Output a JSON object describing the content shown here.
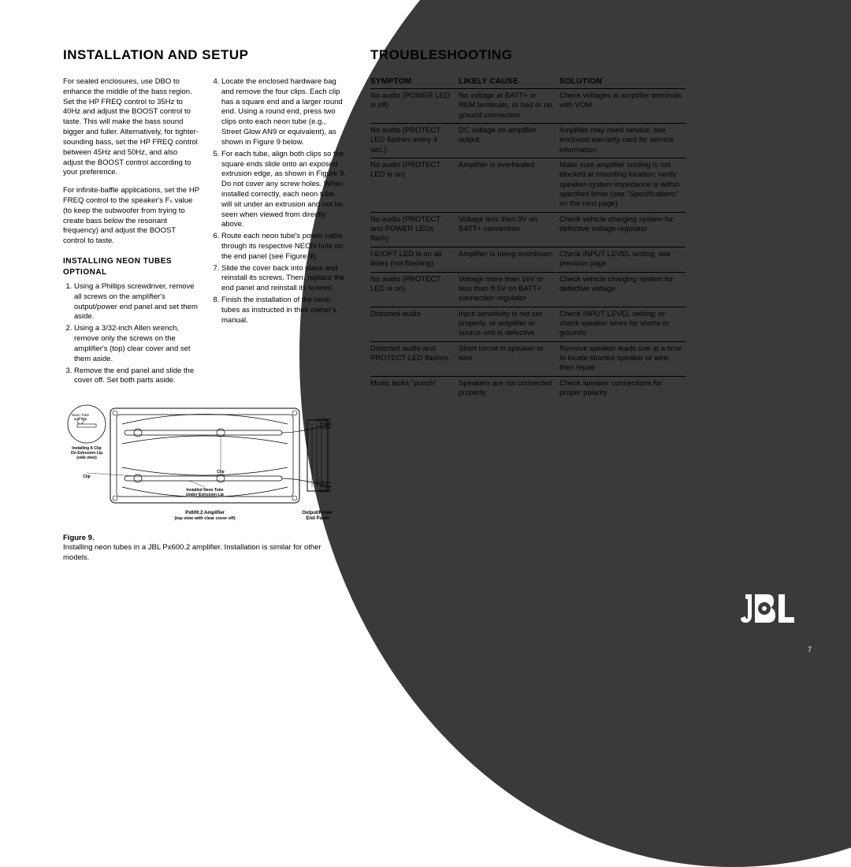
{
  "headings": {
    "left": "INSTALLATION AND SETUP",
    "right": "TROUBLESHOOTING"
  },
  "installation": {
    "para1": "For sealed enclosures, use DBO to enhance the middle of the bass region. Set the HP FREQ control to 35Hz to 40Hz and adjust the BOOST control to taste. This will make the bass sound bigger and fuller. Alternatively, for tighter-sounding bass, set the HP FREQ control between 45Hz and 50Hz, and also adjust the BOOST control according to your preference.",
    "para2": "For infinite-baffle applications, set the HP FREQ control to the speaker's Fₛ value (to keep the subwoofer from trying to create bass below the resonant frequency) and adjust the BOOST control to taste.",
    "subhead": "INSTALLING NEON TUBES OPTIONAL",
    "steps_a": [
      "Using a Phillips screwdriver, remove all screws on the amplifier's output/power end panel and set them aside.",
      "Using a 3/32-inch Allen wrench, remove only the screws on the amplifier's (top) clear cover and set them aside.",
      "Remove the end panel and slide the cover off. Set both parts aside."
    ],
    "steps_b": [
      "Locate the enclosed hardware bag and remove the four clips. Each clip has a square end and a larger round end. Using a round end, press two clips onto each neon tube (e.g., Street Glow AN9 or equivalent), as shown in Figure 9 below.",
      "For each tube, align both clips so the square ends slide onto an exposed extrusion edge, as shown in Figure 9. Do not cover any screw holes. When installed correctly, each neon tube will sit under an extrusion and not be seen when viewed from directly above.",
      "Route each neon tube's power cable through its respective NEON hole on the end panel (see Figure 9).",
      "Slide the cover back into place and reinstall its screws. Then, replace the end panel and reinstall its screws.",
      "Finish the installation of the neon tubes as instructed in their owner's manual."
    ]
  },
  "figure": {
    "label": "Figure 9.",
    "caption": "Installing neon tubes in a JBL Px600.2 amplifier. Installation is similar for other models.",
    "amp_label": "Px600.2 Amplifier",
    "amp_sub": "(top view with clear cover off)",
    "panel_label": "Output/Power",
    "panel_sub": "End Panel",
    "neon_top": "To Neon Power Supply",
    "neon_bot": "To Neon Power Supply",
    "clip_label": "Clip",
    "install_clip": "Installing A Clip On Extrusion Lip (side view)",
    "installed_tube": "Installed Neon Tube Under Extrusion Lip",
    "neon_tube": "Neon Tube",
    "and_clip": "Neon Tube and Clip"
  },
  "troubleshooting": {
    "headers": {
      "c1": "SYMPTOM",
      "c2": "LIKELY CAUSE",
      "c3": "SOLUTION"
    },
    "rows": [
      {
        "c1": "No audio (POWER LED is off)",
        "c2": "No voltage at BATT+ or REM terminals, or bad or no ground connection",
        "c3": "Check voltages at amplifier terminals with VOM"
      },
      {
        "c1": "No audio (PROTECT LED flashes every 4 sec.)",
        "c2": "DC voltage on amplifier output",
        "c3": "Amplifier may need service; see enclosed warranty card for service information"
      },
      {
        "c1": "No audio (PROTECT LED is on)",
        "c2": "Amplifier is overheated",
        "c3": "Make sure amplifier cooling is not blocked at mounting location; verify speaker-system impedance is within specified limits (see \"Specifications\" on the next page)"
      },
      {
        "c1": "No audio (PROTECT and POWER LEDs flash)",
        "c2": "Voltage less than 9V on BATT+ connection",
        "c3": "Check vehicle charging system for defective voltage regulator"
      },
      {
        "c1": "I-E/OPT LED is on all times (not flashing)",
        "c2": "Amplifier is being overdriven",
        "c3": "Check INPUT LEVEL setting; see previous page"
      },
      {
        "c1": "No audio (PROTECT LED is on)",
        "c2": "Voltage more than 16V or less than 8.5V on BATT+ connection regulator",
        "c3": "Check vehicle charging system for defective voltage"
      },
      {
        "c1": "Distorted audio",
        "c2": "Input sensitivity is not set properly, or amplifier or source unit is defective",
        "c3": "Check INPUT LEVEL setting; or check speaker wires for shorts or grounds"
      },
      {
        "c1": "Distorted audio and PROTECT LED flashes",
        "c2": "Short circuit in speaker or wire",
        "c3": "Remove speaker leads one at a time to locate shorted speaker or wire, then repair"
      },
      {
        "c1": "Music lacks \"punch\"",
        "c2": "Speakers are not connected properly",
        "c3": "Check speaker connections for proper polarity"
      }
    ]
  },
  "page_number": "7",
  "styling": {
    "bg_arc_color": "#3a3a3a",
    "text_color": "#000000",
    "logo_color": "#ffffff",
    "heading_size_pt": 17,
    "body_size_pt": 9.5,
    "table_header_size_pt": 10
  }
}
